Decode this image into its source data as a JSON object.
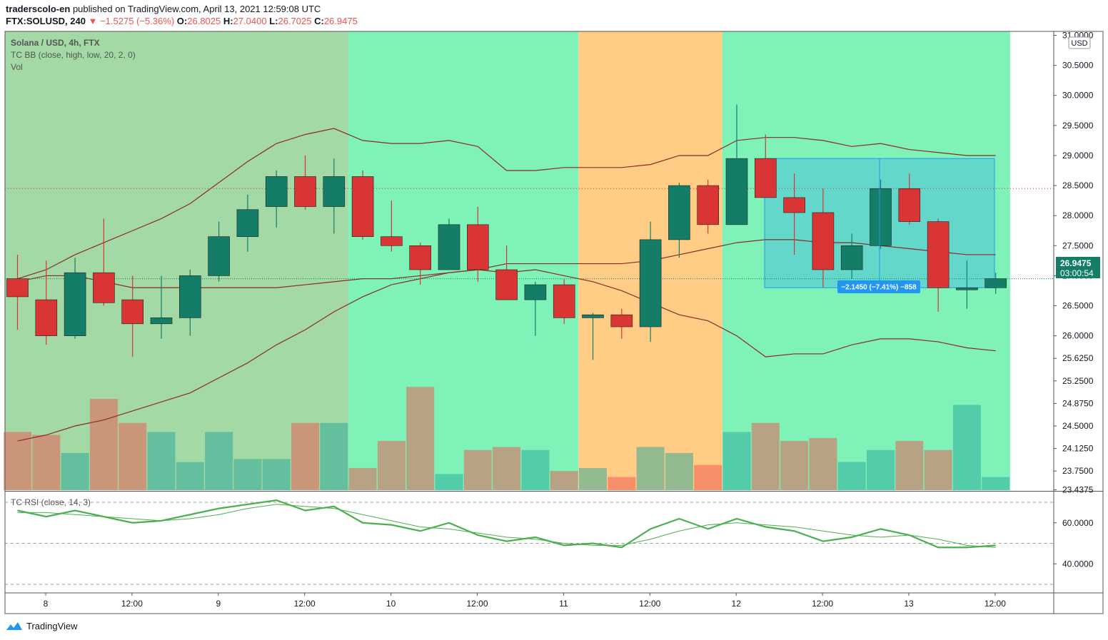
{
  "header": {
    "author": "traderscolo-en",
    "published_text": "published on TradingView.com, April 13, 2021 12:59:08 UTC",
    "symbol": "FTX:SOLUSD, 240",
    "change": "▼ −1.5275 (−5.36%)",
    "o_label": "O:",
    "o_value": "26.8025",
    "h_label": "H:",
    "h_value": "27.0400",
    "l_label": "L:",
    "l_value": "26.7025",
    "c_label": "C:",
    "c_value": "26.9475"
  },
  "legend": {
    "title": "Solana / USD, 4h, FTX",
    "bb": "TC BB (close, high, low, 20, 2, 0)",
    "vol": "Vol",
    "rsi": "TC RSI (close, 14, 3)"
  },
  "price_axis": {
    "currency": "USD",
    "labels": [
      "31.0000",
      "30.5000",
      "30.0000",
      "29.5000",
      "29.0000",
      "28.5000",
      "28.0000",
      "27.5000",
      "27.0000",
      "26.5000",
      "26.0000",
      "25.6250",
      "25.2500",
      "24.8750",
      "24.5000",
      "24.1250",
      "23.7500",
      "23.4375"
    ],
    "last_price": "26.9475",
    "countdown": "03:00:54"
  },
  "rsi_axis": {
    "labels": [
      "60.0000",
      "40.0000"
    ]
  },
  "time_axis": {
    "labels": [
      "8",
      "12:00",
      "9",
      "12:00",
      "10",
      "12:00",
      "11",
      "12:00",
      "12",
      "12:00",
      "13",
      "12:00"
    ]
  },
  "measure": {
    "label": "−2.1450 (−7.41%) −858"
  },
  "footer": {
    "brand": "TradingView"
  },
  "colors": {
    "up": "#137d68",
    "down": "#da3535",
    "bb": "#8b2a2a",
    "zone_green": "#a3d9a5",
    "zone_mint": "#7ff2b8",
    "zone_orange": "#ffcd85",
    "measure_fill": "#5ed3cc",
    "rsi": "#4caf50"
  },
  "chart_data": {
    "type": "candlestick",
    "interval": "4h",
    "candles": [
      {
        "o": 26.95,
        "h": 27.35,
        "l": 26.1,
        "c": 26.65
      },
      {
        "o": 26.6,
        "h": 27.25,
        "l": 25.85,
        "c": 26.0
      },
      {
        "o": 26.0,
        "h": 27.3,
        "l": 25.95,
        "c": 27.05
      },
      {
        "o": 27.05,
        "h": 27.95,
        "l": 26.5,
        "c": 26.55
      },
      {
        "o": 26.6,
        "h": 27.0,
        "l": 25.65,
        "c": 26.2
      },
      {
        "o": 26.2,
        "h": 27.0,
        "l": 25.95,
        "c": 26.3
      },
      {
        "o": 26.3,
        "h": 27.1,
        "l": 26.0,
        "c": 27.0
      },
      {
        "o": 27.0,
        "h": 27.9,
        "l": 26.9,
        "c": 27.65
      },
      {
        "o": 27.65,
        "h": 28.35,
        "l": 27.4,
        "c": 28.1
      },
      {
        "o": 28.15,
        "h": 28.75,
        "l": 27.8,
        "c": 28.65
      },
      {
        "o": 28.65,
        "h": 29.0,
        "l": 28.1,
        "c": 28.15
      },
      {
        "o": 28.15,
        "h": 28.95,
        "l": 27.7,
        "c": 28.65
      },
      {
        "o": 28.65,
        "h": 28.75,
        "l": 27.6,
        "c": 27.65
      },
      {
        "o": 27.65,
        "h": 28.25,
        "l": 27.4,
        "c": 27.5
      },
      {
        "o": 27.5,
        "h": 27.55,
        "l": 26.85,
        "c": 27.1
      },
      {
        "o": 27.1,
        "h": 27.95,
        "l": 27.1,
        "c": 27.85
      },
      {
        "o": 27.85,
        "h": 28.15,
        "l": 26.9,
        "c": 27.1
      },
      {
        "o": 27.1,
        "h": 27.5,
        "l": 26.6,
        "c": 26.6
      },
      {
        "o": 26.6,
        "h": 26.9,
        "l": 26.0,
        "c": 26.85
      },
      {
        "o": 26.85,
        "h": 26.95,
        "l": 26.2,
        "c": 26.3
      },
      {
        "o": 26.3,
        "h": 26.38,
        "l": 25.6,
        "c": 26.35
      },
      {
        "o": 26.35,
        "h": 26.45,
        "l": 25.95,
        "c": 26.15
      },
      {
        "o": 26.15,
        "h": 27.9,
        "l": 25.9,
        "c": 27.6
      },
      {
        "o": 27.6,
        "h": 28.55,
        "l": 27.3,
        "c": 28.5
      },
      {
        "o": 28.5,
        "h": 28.6,
        "l": 27.7,
        "c": 27.85
      },
      {
        "o": 27.85,
        "h": 29.85,
        "l": 27.85,
        "c": 28.95
      },
      {
        "o": 28.95,
        "h": 29.35,
        "l": 28.3,
        "c": 28.3
      },
      {
        "o": 28.3,
        "h": 28.7,
        "l": 27.35,
        "c": 28.05
      },
      {
        "o": 28.05,
        "h": 28.45,
        "l": 26.8,
        "c": 27.1
      },
      {
        "o": 27.1,
        "h": 27.7,
        "l": 26.95,
        "c": 27.5
      },
      {
        "o": 27.5,
        "h": 28.6,
        "l": 27.45,
        "c": 28.45
      },
      {
        "o": 28.45,
        "h": 28.7,
        "l": 27.85,
        "c": 27.9
      },
      {
        "o": 27.9,
        "h": 27.95,
        "l": 26.4,
        "c": 26.8
      },
      {
        "o": 26.8,
        "h": 27.25,
        "l": 26.45,
        "c": 26.8
      },
      {
        "o": 26.8,
        "h": 27.05,
        "l": 26.7,
        "c": 26.95
      }
    ],
    "volume": [
      24.4,
      24.35,
      24.05,
      24.95,
      24.55,
      24.4,
      23.9,
      24.4,
      23.95,
      23.95,
      24.55,
      24.55,
      23.8,
      24.25,
      25.15,
      23.7,
      24.1,
      24.15,
      24.1,
      23.75,
      23.8,
      23.65,
      24.15,
      24.05,
      23.85,
      24.4,
      24.55,
      24.25,
      24.3,
      23.9,
      24.1,
      24.25,
      24.1,
      24.85,
      23.65
    ],
    "bb_upper": [
      26.95,
      27.1,
      27.35,
      27.55,
      27.75,
      27.95,
      28.2,
      28.55,
      28.9,
      29.2,
      29.35,
      29.45,
      29.25,
      29.2,
      29.2,
      29.25,
      29.15,
      28.75,
      28.75,
      28.8,
      28.8,
      28.8,
      28.85,
      29.0,
      29.0,
      29.25,
      29.3,
      29.3,
      29.25,
      29.15,
      29.2,
      29.1,
      29.05,
      29.0,
      29.0
    ],
    "bb_middle": [
      26.9,
      27.0,
      27.0,
      26.9,
      26.8,
      26.8,
      26.8,
      26.8,
      26.8,
      26.8,
      26.85,
      26.9,
      26.95,
      26.95,
      27.0,
      27.05,
      27.1,
      27.2,
      27.2,
      27.2,
      27.2,
      27.2,
      27.25,
      27.35,
      27.45,
      27.55,
      27.6,
      27.6,
      27.55,
      27.55,
      27.5,
      27.45,
      27.4,
      27.35,
      27.35
    ],
    "bb_lower": [
      24.25,
      24.35,
      24.5,
      24.6,
      24.75,
      24.9,
      25.05,
      25.3,
      25.55,
      25.85,
      26.1,
      26.4,
      26.65,
      26.85,
      26.95,
      27.05,
      27.1,
      27.05,
      27.1,
      27.0,
      26.9,
      26.75,
      26.55,
      26.35,
      26.25,
      26.0,
      25.65,
      25.7,
      25.7,
      25.85,
      25.95,
      25.95,
      25.9,
      25.8,
      25.75
    ],
    "rsi": [
      66,
      63,
      66,
      63,
      60,
      61,
      64,
      67,
      69,
      71,
      66,
      68,
      60,
      59,
      56,
      60,
      54,
      51,
      53,
      49,
      50,
      48,
      57,
      62,
      57,
      62,
      58,
      56,
      51,
      53,
      57,
      54,
      48,
      48,
      49
    ],
    "rsi_signal": [
      65,
      65,
      64,
      63,
      62,
      61,
      62,
      64,
      67,
      69,
      68,
      67,
      64,
      61,
      58,
      57,
      55,
      53,
      52,
      50,
      49,
      49,
      52,
      56,
      59,
      60,
      59,
      58,
      56,
      54,
      53,
      54,
      52,
      49,
      48
    ],
    "y_range": [
      23.4375,
      31.0
    ],
    "rsi_range": [
      30,
      70
    ],
    "zones": [
      {
        "from": 0,
        "to": 11,
        "color": "zone_green"
      },
      {
        "from": 12,
        "to": 19,
        "color": "zone_mint"
      },
      {
        "from": 20,
        "to": 24,
        "color": "zone_orange"
      },
      {
        "from": 25,
        "to": 34,
        "color": "zone_mint"
      }
    ]
  }
}
